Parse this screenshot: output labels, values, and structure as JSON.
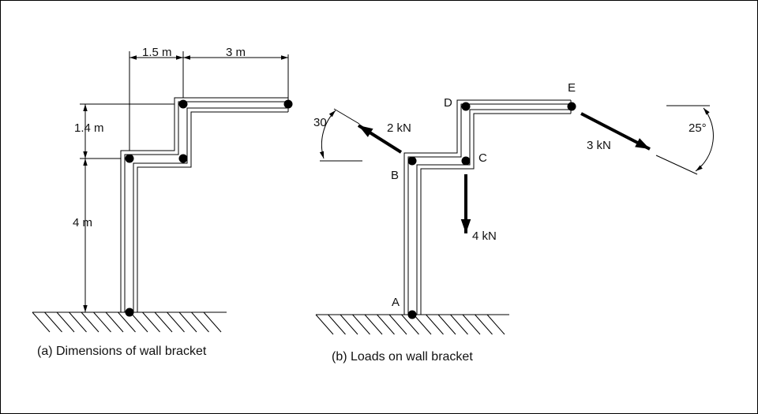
{
  "figure_a": {
    "caption": "(a) Dimensions of wall bracket",
    "dim_1": "1.5 m",
    "dim_2": "3 m",
    "dim_3": "1.4 m",
    "dim_4": "4 m"
  },
  "figure_b": {
    "caption": "(b) Loads on wall bracket",
    "points": {
      "a": "A",
      "b": "B",
      "c": "C",
      "d": "D",
      "e": "E"
    },
    "loads": {
      "force_b": "2 kN",
      "angle_b": "30",
      "force_c": "4 kN",
      "force_e": "3 kN",
      "angle_e": "25°"
    }
  }
}
